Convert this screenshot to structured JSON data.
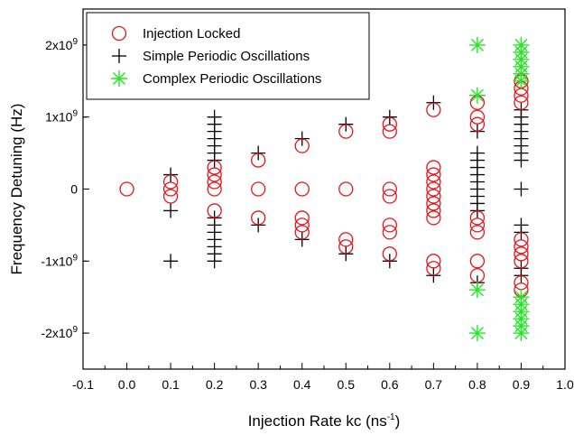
{
  "chart_data": {
    "type": "scatter",
    "title": "",
    "xlabel": "Injection Rate kc (ns",
    "xlabel_sup": "-1",
    "xlabel_close": ")",
    "ylabel": "Frequency Detuning (Hz)",
    "xlim": [
      -0.1,
      1.0
    ],
    "ylim": [
      -2500000000,
      2500000000
    ],
    "grid": false,
    "legend_position": "top-left",
    "x_ticks": [
      {
        "value": -0.1,
        "label": "-0.1"
      },
      {
        "value": 0.0,
        "label": "0.0"
      },
      {
        "value": 0.1,
        "label": "0.1"
      },
      {
        "value": 0.2,
        "label": "0.2"
      },
      {
        "value": 0.3,
        "label": "0.3"
      },
      {
        "value": 0.4,
        "label": "0.4"
      },
      {
        "value": 0.5,
        "label": "0.5"
      },
      {
        "value": 0.6,
        "label": "0.6"
      },
      {
        "value": 0.7,
        "label": "0.7"
      },
      {
        "value": 0.8,
        "label": "0.8"
      },
      {
        "value": 0.9,
        "label": "0.9"
      },
      {
        "value": 1.0,
        "label": "1.0"
      }
    ],
    "y_ticks": [
      {
        "value": 2000000000,
        "base": "2x10",
        "exp": "9"
      },
      {
        "value": 1000000000,
        "base": "1x10",
        "exp": "9"
      },
      {
        "value": 0,
        "base": "0",
        "exp": ""
      },
      {
        "value": -1000000000,
        "base": "-1x10",
        "exp": "9"
      },
      {
        "value": -2000000000,
        "base": "-2x10",
        "exp": "9"
      }
    ],
    "series": [
      {
        "name": "Injection Locked",
        "marker": "circle",
        "color": "#e8141c",
        "points": [
          [
            0.0,
            0
          ],
          [
            0.1,
            100000000
          ],
          [
            0.1,
            0
          ],
          [
            0.1,
            -100000000
          ],
          [
            0.2,
            300000000
          ],
          [
            0.2,
            200000000
          ],
          [
            0.2,
            100000000
          ],
          [
            0.2,
            0
          ],
          [
            0.2,
            -300000000
          ],
          [
            0.3,
            400000000
          ],
          [
            0.3,
            0
          ],
          [
            0.3,
            -400000000
          ],
          [
            0.4,
            600000000
          ],
          [
            0.4,
            0
          ],
          [
            0.4,
            -400000000
          ],
          [
            0.4,
            -500000000
          ],
          [
            0.4,
            -600000000
          ],
          [
            0.5,
            800000000
          ],
          [
            0.5,
            0
          ],
          [
            0.5,
            -700000000
          ],
          [
            0.5,
            -800000000
          ],
          [
            0.6,
            900000000
          ],
          [
            0.6,
            800000000
          ],
          [
            0.6,
            0
          ],
          [
            0.6,
            -100000000
          ],
          [
            0.6,
            -500000000
          ],
          [
            0.6,
            -600000000
          ],
          [
            0.6,
            -900000000
          ],
          [
            0.7,
            1100000000
          ],
          [
            0.7,
            300000000
          ],
          [
            0.7,
            200000000
          ],
          [
            0.7,
            100000000
          ],
          [
            0.7,
            0
          ],
          [
            0.7,
            -100000000
          ],
          [
            0.7,
            -200000000
          ],
          [
            0.7,
            -300000000
          ],
          [
            0.7,
            -400000000
          ],
          [
            0.7,
            -1000000000
          ],
          [
            0.7,
            -1100000000
          ],
          [
            0.8,
            1200000000
          ],
          [
            0.8,
            1000000000
          ],
          [
            0.8,
            900000000
          ],
          [
            0.8,
            -400000000
          ],
          [
            0.8,
            -500000000
          ],
          [
            0.8,
            -600000000
          ],
          [
            0.8,
            -1000000000
          ],
          [
            0.8,
            -1200000000
          ],
          [
            0.9,
            1500000000
          ],
          [
            0.9,
            1400000000
          ],
          [
            0.9,
            1300000000
          ],
          [
            0.9,
            1200000000
          ],
          [
            0.9,
            -700000000
          ],
          [
            0.9,
            -800000000
          ],
          [
            0.9,
            -900000000
          ],
          [
            0.9,
            -1000000000
          ],
          [
            0.9,
            -1300000000
          ],
          [
            0.9,
            -1400000000
          ]
        ]
      },
      {
        "name": "Simple Periodic Oscillations",
        "marker": "plus",
        "color": "#000000",
        "points": [
          [
            0.1,
            200000000
          ],
          [
            0.1,
            -300000000
          ],
          [
            0.1,
            -1000000000
          ],
          [
            0.2,
            1000000000
          ],
          [
            0.2,
            900000000
          ],
          [
            0.2,
            800000000
          ],
          [
            0.2,
            700000000
          ],
          [
            0.2,
            600000000
          ],
          [
            0.2,
            500000000
          ],
          [
            0.2,
            400000000
          ],
          [
            0.2,
            -400000000
          ],
          [
            0.2,
            -500000000
          ],
          [
            0.2,
            -600000000
          ],
          [
            0.2,
            -700000000
          ],
          [
            0.2,
            -800000000
          ],
          [
            0.2,
            -900000000
          ],
          [
            0.2,
            -1000000000
          ],
          [
            0.3,
            500000000
          ],
          [
            0.3,
            -500000000
          ],
          [
            0.4,
            700000000
          ],
          [
            0.4,
            -700000000
          ],
          [
            0.5,
            900000000
          ],
          [
            0.5,
            -900000000
          ],
          [
            0.6,
            1000000000
          ],
          [
            0.6,
            -1000000000
          ],
          [
            0.7,
            1200000000
          ],
          [
            0.7,
            -1200000000
          ],
          [
            0.8,
            800000000
          ],
          [
            0.8,
            500000000
          ],
          [
            0.8,
            400000000
          ],
          [
            0.8,
            300000000
          ],
          [
            0.8,
            200000000
          ],
          [
            0.8,
            100000000
          ],
          [
            0.8,
            0
          ],
          [
            0.8,
            -100000000
          ],
          [
            0.8,
            -200000000
          ],
          [
            0.8,
            -300000000
          ],
          [
            0.8,
            -1300000000
          ],
          [
            0.9,
            1100000000
          ],
          [
            0.9,
            1000000000
          ],
          [
            0.9,
            900000000
          ],
          [
            0.9,
            800000000
          ],
          [
            0.9,
            700000000
          ],
          [
            0.9,
            600000000
          ],
          [
            0.9,
            500000000
          ],
          [
            0.9,
            400000000
          ],
          [
            0.9,
            0
          ],
          [
            0.9,
            -500000000
          ],
          [
            0.9,
            -600000000
          ],
          [
            0.9,
            -1100000000
          ],
          [
            0.9,
            -1200000000
          ]
        ]
      },
      {
        "name": "Complex Periodic Oscillations",
        "marker": "asterisk",
        "color": "#22e622",
        "points": [
          [
            0.8,
            2000000000
          ],
          [
            0.8,
            1300000000
          ],
          [
            0.8,
            -1400000000
          ],
          [
            0.8,
            -2000000000
          ],
          [
            0.9,
            2000000000
          ],
          [
            0.9,
            1900000000
          ],
          [
            0.9,
            1800000000
          ],
          [
            0.9,
            1700000000
          ],
          [
            0.9,
            1600000000
          ],
          [
            0.9,
            1500000000
          ],
          [
            0.9,
            -1500000000
          ],
          [
            0.9,
            -1600000000
          ],
          [
            0.9,
            -1700000000
          ],
          [
            0.9,
            -1800000000
          ],
          [
            0.9,
            -1900000000
          ],
          [
            0.9,
            -2000000000
          ]
        ]
      }
    ]
  }
}
